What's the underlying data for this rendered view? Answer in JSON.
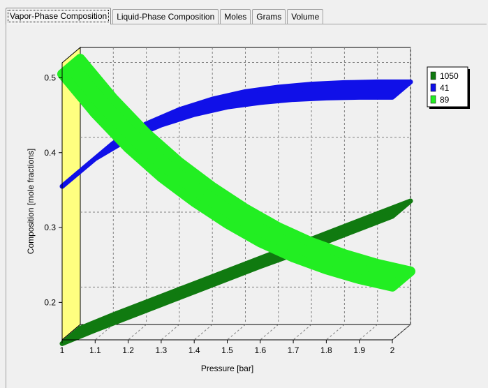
{
  "tabs": [
    {
      "label": "Vapor-Phase Composition",
      "active": true
    },
    {
      "label": "Liquid-Phase Composition",
      "active": false
    },
    {
      "label": "Moles",
      "active": false
    },
    {
      "label": "Grams",
      "active": false
    },
    {
      "label": "Volume",
      "active": false
    }
  ],
  "chart_data": {
    "type": "line",
    "xlabel": "Pressure [bar]",
    "ylabel": "Composition [mole fractions]",
    "xlim": [
      1,
      2
    ],
    "ylim": [
      0.15,
      0.52
    ],
    "xticks": [
      "1",
      "1.1",
      "1.2",
      "1.3",
      "1.4",
      "1.5",
      "1.6",
      "1.7",
      "1.8",
      "1.9",
      "2"
    ],
    "yticks": [
      "0.2",
      "0.3",
      "0.4",
      "0.5"
    ],
    "grid": true,
    "style": "3d",
    "legend_position": "top-right",
    "x": [
      1.0,
      1.1,
      1.2,
      1.3,
      1.4,
      1.5,
      1.6,
      1.7,
      1.8,
      1.9,
      2.0
    ],
    "series": [
      {
        "name": "1050",
        "color": "#107a10",
        "values": [
          0.145,
          0.163,
          0.18,
          0.197,
          0.214,
          0.231,
          0.248,
          0.264,
          0.281,
          0.298,
          0.315
        ]
      },
      {
        "name": "41",
        "color": "#1010e8",
        "values": [
          0.355,
          0.392,
          0.418,
          0.437,
          0.451,
          0.461,
          0.467,
          0.471,
          0.473,
          0.474,
          0.474
        ]
      },
      {
        "name": "89",
        "color": "#22ee22",
        "values": [
          0.505,
          0.452,
          0.406,
          0.367,
          0.334,
          0.305,
          0.28,
          0.26,
          0.244,
          0.231,
          0.221
        ]
      }
    ]
  }
}
